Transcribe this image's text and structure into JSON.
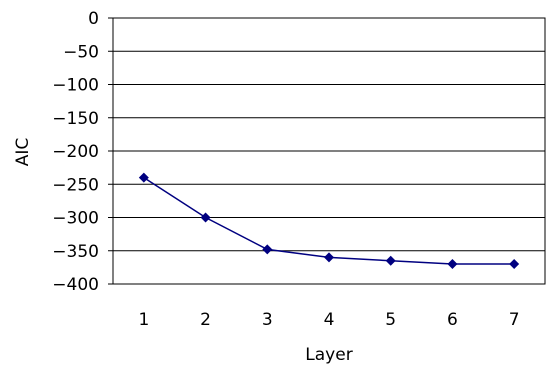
{
  "chart_data": {
    "type": "line",
    "title": "",
    "xlabel": "Layer",
    "ylabel": "AIC",
    "categories": [
      "1",
      "2",
      "3",
      "4",
      "5",
      "6",
      "7"
    ],
    "y_ticks": [
      "0",
      "-50",
      "-100",
      "-150",
      "-200",
      "-250",
      "-300",
      "-350",
      "-400"
    ],
    "ylim": [
      -400,
      0
    ],
    "grid": "horizontal",
    "legend": "none",
    "series": [
      {
        "values": [
          -240,
          -300,
          -348,
          -360,
          -365,
          -370,
          -370
        ],
        "color": "#000080",
        "marker": "diamond"
      }
    ]
  }
}
